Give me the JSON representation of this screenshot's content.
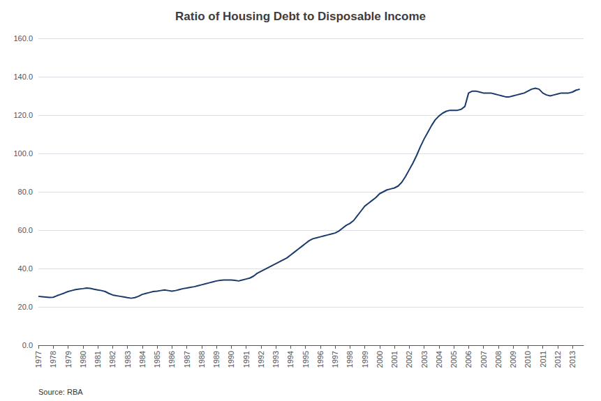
{
  "chart_data": {
    "type": "line",
    "title": "Ratio of Housing Debt to Disposable Income",
    "annotations": [
      "Source: RBA"
    ],
    "color": "#1a3a6b",
    "grid": true,
    "xlim": [
      1977.0,
      2013.75
    ],
    "xticks": [
      1977,
      1978,
      1979,
      1980,
      1981,
      1982,
      1983,
      1984,
      1985,
      1986,
      1987,
      1988,
      1989,
      1990,
      1991,
      1992,
      1993,
      1994,
      1995,
      1996,
      1997,
      1998,
      1999,
      2000,
      2001,
      2002,
      2003,
      2004,
      2005,
      2006,
      2007,
      2008,
      2009,
      2010,
      2011,
      2012,
      2013
    ],
    "ylim": [
      0.0,
      160.0
    ],
    "yticks": [
      {
        "value": 0,
        "label": "0.0"
      },
      {
        "value": 20,
        "label": "20.0"
      },
      {
        "value": 40,
        "label": "40.0"
      },
      {
        "value": 60,
        "label": "60.0"
      },
      {
        "value": 80,
        "label": "80.0"
      },
      {
        "value": 100,
        "label": "100.0"
      },
      {
        "value": 120,
        "label": "120.0"
      },
      {
        "value": 140,
        "label": "140.0"
      },
      {
        "value": 160,
        "label": "160.0"
      }
    ],
    "x": [
      1977.0,
      1977.25,
      1977.5,
      1977.75,
      1978.0,
      1978.25,
      1978.5,
      1978.75,
      1979.0,
      1979.25,
      1979.5,
      1979.75,
      1980.0,
      1980.25,
      1980.5,
      1980.75,
      1981.0,
      1981.25,
      1981.5,
      1981.75,
      1982.0,
      1982.25,
      1982.5,
      1982.75,
      1983.0,
      1983.25,
      1983.5,
      1983.75,
      1984.0,
      1984.25,
      1984.5,
      1984.75,
      1985.0,
      1985.25,
      1985.5,
      1985.75,
      1986.0,
      1986.25,
      1986.5,
      1986.75,
      1987.0,
      1987.25,
      1987.5,
      1987.75,
      1988.0,
      1988.25,
      1988.5,
      1988.75,
      1989.0,
      1989.25,
      1989.5,
      1989.75,
      1990.0,
      1990.25,
      1990.5,
      1990.75,
      1991.0,
      1991.25,
      1991.5,
      1991.75,
      1992.0,
      1992.25,
      1992.5,
      1992.75,
      1993.0,
      1993.25,
      1993.5,
      1993.75,
      1994.0,
      1994.25,
      1994.5,
      1994.75,
      1995.0,
      1995.25,
      1995.5,
      1995.75,
      1996.0,
      1996.25,
      1996.5,
      1996.75,
      1997.0,
      1997.25,
      1997.5,
      1997.75,
      1998.0,
      1998.25,
      1998.5,
      1998.75,
      1999.0,
      1999.25,
      1999.5,
      1999.75,
      2000.0,
      2000.25,
      2000.5,
      2000.75,
      2001.0,
      2001.25,
      2001.5,
      2001.75,
      2002.0,
      2002.25,
      2002.5,
      2002.75,
      2003.0,
      2003.25,
      2003.5,
      2003.75,
      2004.0,
      2004.25,
      2004.5,
      2004.75,
      2005.0,
      2005.25,
      2005.5,
      2005.75,
      2006.0,
      2006.25,
      2006.5,
      2006.75,
      2007.0,
      2007.25,
      2007.5,
      2007.75,
      2008.0,
      2008.25,
      2008.5,
      2008.75,
      2009.0,
      2009.25,
      2009.5,
      2009.75,
      2010.0,
      2010.25,
      2010.5,
      2010.75,
      2011.0,
      2011.25,
      2011.5,
      2011.75,
      2012.0,
      2012.25,
      2012.5,
      2012.75,
      2013.0,
      2013.25,
      2013.5
    ],
    "values": [
      25.5,
      25.3,
      25.1,
      24.9,
      25.0,
      25.8,
      26.5,
      27.2,
      28.0,
      28.5,
      29.0,
      29.3,
      29.5,
      29.8,
      29.6,
      29.2,
      28.8,
      28.5,
      28.0,
      27.0,
      26.2,
      25.8,
      25.5,
      25.2,
      24.8,
      24.5,
      24.8,
      25.5,
      26.5,
      27.0,
      27.5,
      28.0,
      28.2,
      28.5,
      28.8,
      28.5,
      28.2,
      28.5,
      29.0,
      29.5,
      29.8,
      30.2,
      30.5,
      31.0,
      31.5,
      32.0,
      32.5,
      33.0,
      33.5,
      33.8,
      34.0,
      34.0,
      34.0,
      33.8,
      33.5,
      34.0,
      34.5,
      35.0,
      36.0,
      37.5,
      38.5,
      39.5,
      40.5,
      41.5,
      42.5,
      43.5,
      44.5,
      45.5,
      47.0,
      48.5,
      50.0,
      51.5,
      53.0,
      54.5,
      55.5,
      56.0,
      56.5,
      57.0,
      57.5,
      58.0,
      58.5,
      59.5,
      61.0,
      62.5,
      63.5,
      65.0,
      67.5,
      70.0,
      72.5,
      74.0,
      75.5,
      77.0,
      79.0,
      80.0,
      81.0,
      81.5,
      82.0,
      83.0,
      85.0,
      88.0,
      91.5,
      95.0,
      99.0,
      103.5,
      107.5,
      111.0,
      114.5,
      117.5,
      119.5,
      121.0,
      122.0,
      122.5,
      122.5,
      122.5,
      123.0,
      124.5,
      131.5,
      132.5,
      132.5,
      132.0,
      131.5,
      131.5,
      131.5,
      131.0,
      130.5,
      130.0,
      129.5,
      129.5,
      130.0,
      130.5,
      131.0,
      131.5,
      132.5,
      133.5,
      134.0,
      133.5,
      131.5,
      130.5,
      130.0,
      130.5,
      131.0,
      131.5,
      131.5,
      131.5,
      132.0,
      133.0,
      133.5
    ]
  }
}
